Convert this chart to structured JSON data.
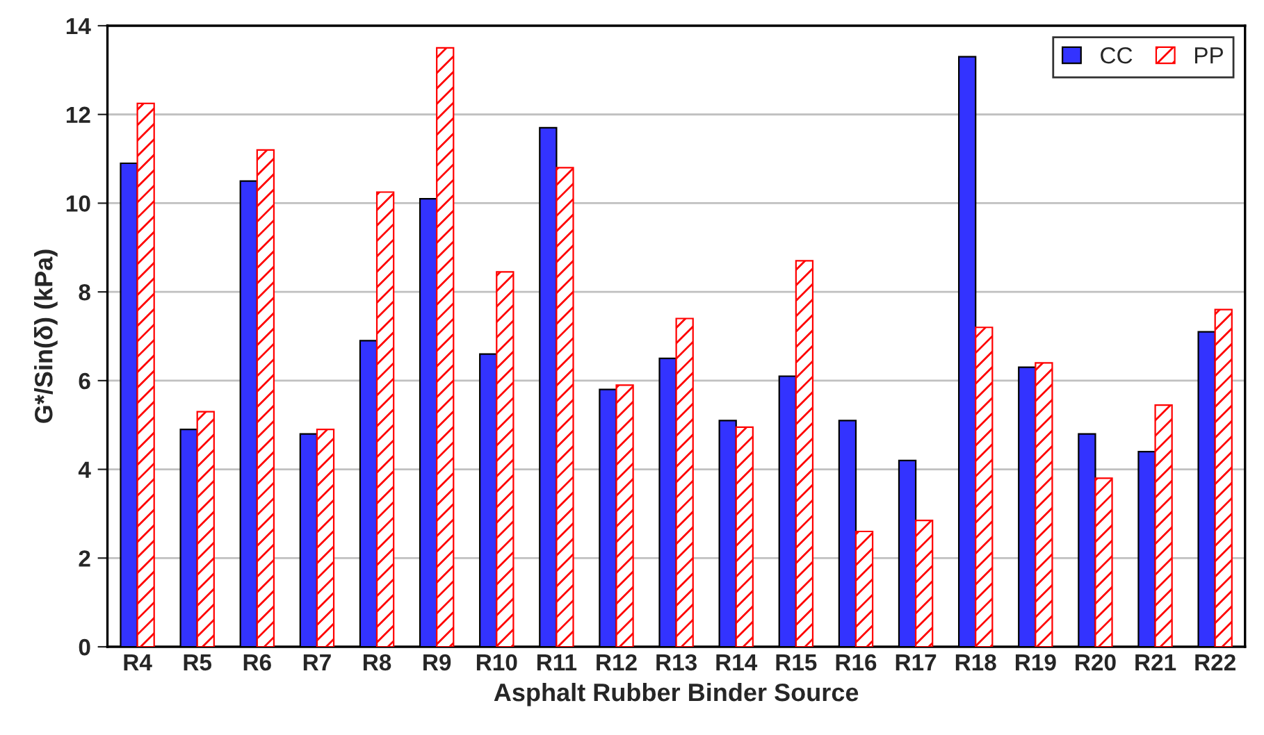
{
  "chart_data": {
    "type": "bar",
    "xlabel": "Asphalt Rubber Binder Source",
    "ylabel": "G*/Sin(δ) (kPa)",
    "categories": [
      "R4",
      "R5",
      "R6",
      "R7",
      "R8",
      "R9",
      "R10",
      "R11",
      "R12",
      "R13",
      "R14",
      "R15",
      "R16",
      "R17",
      "R18",
      "R19",
      "R20",
      "R21",
      "R22"
    ],
    "series": [
      {
        "name": "CC",
        "color": "#3333ff",
        "values": [
          10.9,
          4.9,
          10.5,
          4.8,
          6.9,
          10.1,
          6.6,
          11.7,
          5.8,
          6.5,
          5.1,
          6.1,
          5.1,
          4.2,
          13.3,
          6.3,
          4.8,
          4.4,
          7.1
        ]
      },
      {
        "name": "PP",
        "color": "#ff0000",
        "values": [
          12.25,
          5.3,
          11.2,
          4.9,
          10.25,
          13.5,
          8.45,
          10.8,
          5.9,
          7.4,
          4.95,
          8.7,
          2.6,
          2.85,
          7.2,
          6.4,
          3.8,
          5.45,
          7.6
        ]
      }
    ],
    "ylim": [
      0,
      14
    ],
    "yticks": [
      0,
      2,
      4,
      6,
      8,
      10,
      12,
      14
    ],
    "grid": "y",
    "legend": "top right"
  }
}
